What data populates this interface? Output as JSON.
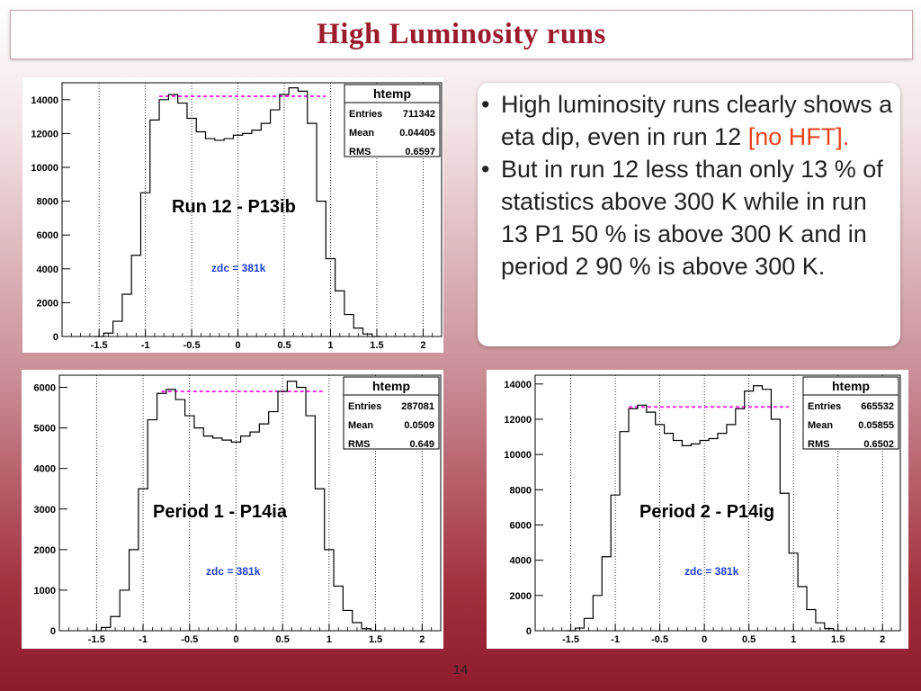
{
  "slide": {
    "title": "High Luminosity runs",
    "page_number": "14",
    "bullets": [
      {
        "text": "High luminosity runs clearly shows a eta dip, even in run 12 ",
        "highlight": "[no HFT]."
      },
      {
        "text": "But in run 12 less than only 13 % of statistics above 300 K while in run 13 P1 50 % is above 300 K and in period 2 90 % is above 300 K.",
        "highlight": ""
      }
    ]
  },
  "colors": {
    "title": "#9b1b2d",
    "highlight": "#e8431d",
    "dashed_line": "#ff2de6",
    "zdc_label": "#1f3fd6"
  },
  "chart_data": [
    {
      "type": "histogram",
      "label": "Run 12 - P13ib",
      "zdc": "zdc = 381k",
      "stats": {
        "title": "htemp",
        "rows": [
          [
            "Entries",
            "711342"
          ],
          [
            "Mean",
            "0.04405"
          ],
          [
            "RMS",
            "0.6597"
          ]
        ]
      },
      "xlim": [
        -1.9,
        2.2
      ],
      "ylim": [
        0,
        15000
      ],
      "xticks": [
        -1.5,
        -1,
        -0.5,
        0,
        0.5,
        1,
        1.5,
        2
      ],
      "yticks": [
        0,
        2000,
        4000,
        6000,
        8000,
        10000,
        12000,
        14000
      ],
      "dashed_level": 14200,
      "dashed_range": [
        -0.85,
        0.95
      ],
      "x": [
        -1.5,
        -1.4,
        -1.3,
        -1.2,
        -1.1,
        -1.0,
        -0.9,
        -0.8,
        -0.7,
        -0.6,
        -0.5,
        -0.4,
        -0.3,
        -0.2,
        -0.1,
        0.0,
        0.1,
        0.2,
        0.3,
        0.4,
        0.5,
        0.6,
        0.7,
        0.8,
        0.9,
        1.0,
        1.1,
        1.2,
        1.3,
        1.4,
        1.5
      ],
      "y": [
        0,
        200,
        900,
        2500,
        4800,
        8500,
        12800,
        14000,
        14300,
        13800,
        12900,
        12100,
        11700,
        11600,
        11700,
        11900,
        12000,
        12200,
        12600,
        13400,
        14300,
        14700,
        14500,
        12600,
        8000,
        4600,
        2700,
        1300,
        500,
        150,
        0
      ]
    },
    {
      "type": "histogram",
      "label": "Period 1 - P14ia",
      "zdc": "zdc = 381k",
      "stats": {
        "title": "htemp",
        "rows": [
          [
            "Entries",
            "287081"
          ],
          [
            "Mean",
            "0.0509"
          ],
          [
            "RMS",
            "0.649"
          ]
        ]
      },
      "xlim": [
        -1.9,
        2.2
      ],
      "ylim": [
        0,
        6300
      ],
      "xticks": [
        -1.5,
        -1,
        -0.5,
        0,
        0.5,
        1,
        1.5,
        2
      ],
      "yticks": [
        0,
        1000,
        2000,
        3000,
        4000,
        5000,
        6000
      ],
      "dashed_level": 5900,
      "dashed_range": [
        -0.8,
        0.95
      ],
      "x": [
        -1.5,
        -1.4,
        -1.3,
        -1.2,
        -1.1,
        -1.0,
        -0.9,
        -0.8,
        -0.7,
        -0.6,
        -0.5,
        -0.4,
        -0.3,
        -0.2,
        -0.1,
        0.0,
        0.1,
        0.2,
        0.3,
        0.4,
        0.5,
        0.6,
        0.7,
        0.8,
        0.9,
        1.0,
        1.1,
        1.2,
        1.3,
        1.4,
        1.5
      ],
      "y": [
        0,
        80,
        350,
        1000,
        2000,
        3500,
        5200,
        5850,
        5950,
        5700,
        5300,
        5000,
        4800,
        4750,
        4700,
        4650,
        4800,
        4900,
        5100,
        5400,
        5900,
        6150,
        6000,
        5300,
        3500,
        2000,
        1100,
        500,
        200,
        50,
        0
      ]
    },
    {
      "type": "histogram",
      "label": "Period 2 - P14ig",
      "zdc": "zdc = 381k",
      "stats": {
        "title": "htemp",
        "rows": [
          [
            "Entries",
            "665532"
          ],
          [
            "Mean",
            "0.05855"
          ],
          [
            "RMS",
            "0.6502"
          ]
        ]
      },
      "xlim": [
        -1.9,
        2.2
      ],
      "ylim": [
        0,
        14500
      ],
      "xticks": [
        -1.5,
        -1,
        -0.5,
        0,
        0.5,
        1,
        1.5,
        2
      ],
      "yticks": [
        0,
        2000,
        4000,
        6000,
        8000,
        10000,
        12000,
        14000
      ],
      "dashed_level": 12700,
      "dashed_range": [
        -0.85,
        0.95
      ],
      "x": [
        -1.5,
        -1.4,
        -1.3,
        -1.2,
        -1.1,
        -1.0,
        -0.9,
        -0.8,
        -0.7,
        -0.6,
        -0.5,
        -0.4,
        -0.3,
        -0.2,
        -0.1,
        0.0,
        0.1,
        0.2,
        0.3,
        0.4,
        0.5,
        0.6,
        0.7,
        0.8,
        0.9,
        1.0,
        1.1,
        1.2,
        1.3,
        1.4,
        1.5
      ],
      "y": [
        0,
        150,
        700,
        2000,
        4200,
        7700,
        11300,
        12600,
        12800,
        12400,
        11700,
        11200,
        10800,
        10500,
        10600,
        10800,
        10900,
        11200,
        11700,
        12600,
        13600,
        13900,
        13700,
        12000,
        7800,
        4400,
        2500,
        1200,
        450,
        120,
        0
      ]
    }
  ]
}
